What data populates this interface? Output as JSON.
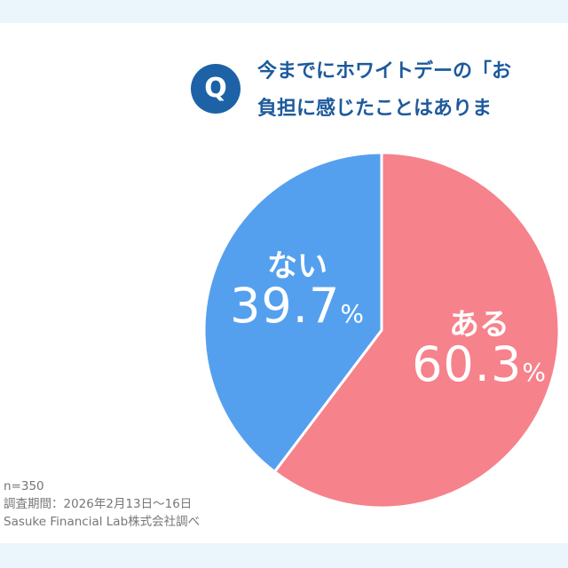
{
  "chart_data": {
    "type": "pie",
    "title_lines": [
      "今までにホワイトデーの「お",
      "負担に感じたことはありま"
    ],
    "badge": "Q",
    "slices": [
      {
        "label": "ある",
        "value": 60.3,
        "display": "60.3",
        "unit": "%",
        "color": "#f6828c"
      },
      {
        "label": "ない",
        "value": 39.7,
        "display": "39.7",
        "unit": "%",
        "color": "#55a0ee"
      }
    ]
  },
  "notes": [
    "n=350",
    "調査期間：2026年2月13日～16日",
    "Sasuke Financial Lab株式会社調べ"
  ]
}
